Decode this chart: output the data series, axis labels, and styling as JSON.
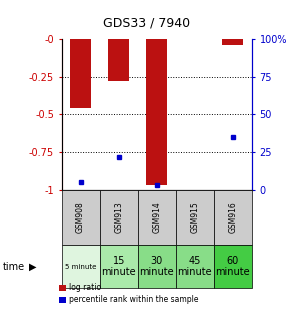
{
  "title": "GDS33 / 7940",
  "samples": [
    "GSM908",
    "GSM913",
    "GSM914",
    "GSM915",
    "GSM916"
  ],
  "time_labels_line1": [
    "5 minute",
    "15",
    "30",
    "45",
    "60"
  ],
  "time_labels_line2": [
    "",
    "minute",
    "minute",
    "minute",
    "minute"
  ],
  "time_colors": [
    "#dff5df",
    "#aaeaaa",
    "#88dd88",
    "#88dd88",
    "#44cc44"
  ],
  "log_ratio": [
    -0.46,
    -0.28,
    -0.97,
    null,
    -0.04
  ],
  "percentile_rank": [
    5,
    22,
    3,
    null,
    35
  ],
  "ylim_left": [
    -1.0,
    0.0
  ],
  "ylim_right": [
    0,
    100
  ],
  "yticks_left": [
    0.0,
    -0.25,
    -0.5,
    -0.75,
    -1.0
  ],
  "yticks_left_labels": [
    "-0",
    "-0.25",
    "-0.5",
    "-0.75",
    "-1"
  ],
  "yticks_right": [
    100,
    75,
    50,
    25,
    0
  ],
  "yticks_right_labels": [
    "100%",
    "75",
    "50",
    "25",
    "0"
  ],
  "left_color": "#cc0000",
  "right_color": "#0000cc",
  "bar_color": "#bb1111",
  "dot_color": "#0000cc",
  "sample_bg": "#cccccc",
  "bar_width": 0.55
}
